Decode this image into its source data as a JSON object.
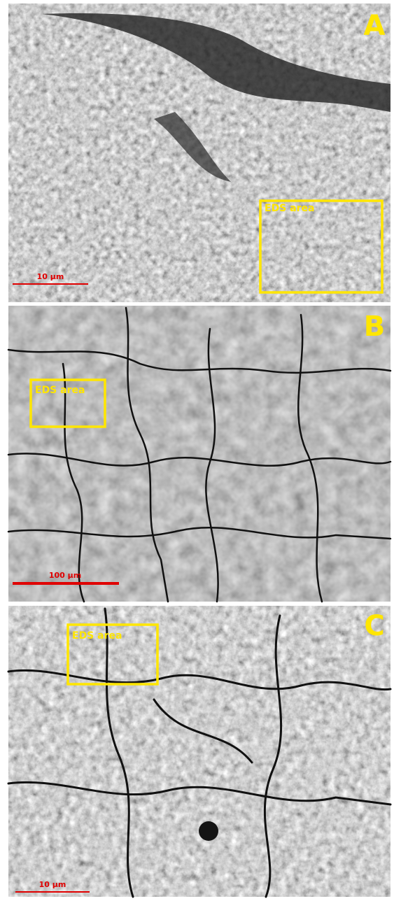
{
  "panels": [
    {
      "label": "A",
      "eds_label": "EDS area",
      "scale_label": "10 μm"
    },
    {
      "label": "B",
      "eds_label": "EDS area",
      "scale_label": "100 μm"
    },
    {
      "label": "C",
      "eds_label": "EDS area",
      "scale_label": "10 μm"
    }
  ]
}
